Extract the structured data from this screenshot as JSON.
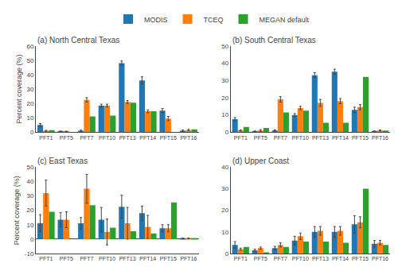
{
  "chart_data": [
    {
      "type": "bar",
      "title": "(a) North Central Texas",
      "categories": [
        "PFT1",
        "PFT5",
        "PFT7",
        "PFT10",
        "PFT13",
        "PFT14",
        "PFT15",
        "PFT16"
      ],
      "series": [
        {
          "name": "MODIS",
          "values": [
            5.0,
            0.5,
            1.0,
            18.5,
            48.0,
            36.0,
            15.0,
            1.0
          ],
          "error_plus": [
            1.0,
            0.3,
            0.5,
            1.0,
            1.5,
            2.5,
            1.5,
            0.5
          ],
          "error_minus": [
            1.0,
            0.3,
            0.5,
            1.0,
            1.5,
            2.5,
            1.5,
            0.5
          ]
        },
        {
          "name": "TCEQ",
          "values": [
            1.0,
            0.5,
            22.5,
            18.5,
            21.0,
            14.5,
            9.5,
            1.5
          ],
          "error_plus": [
            0.3,
            0.2,
            1.5,
            1.0,
            1.0,
            1.0,
            1.5,
            0.5
          ],
          "error_minus": [
            0.3,
            0.2,
            1.5,
            1.0,
            1.0,
            1.0,
            1.5,
            0.5
          ]
        },
        {
          "name": "MEGAN default",
          "values": [
            1.5,
            0.0,
            11.0,
            11.5,
            20.5,
            14.5,
            0.0,
            2.0
          ]
        }
      ],
      "ylabel": "Percent coverage (%)",
      "ylim": [
        0,
        60
      ],
      "yticks": [
        0,
        10,
        20,
        30,
        40,
        50,
        60
      ],
      "grid": false,
      "legend": "top"
    },
    {
      "type": "bar",
      "title": "(b) South Central Texas",
      "categories": [
        "PFT1",
        "PFT5",
        "PFT7",
        "PFT10",
        "PFT13",
        "PFT14",
        "PFT15",
        "PFT16"
      ],
      "series": [
        {
          "name": "MODIS",
          "values": [
            7.5,
            0.5,
            1.0,
            10.0,
            33.0,
            35.0,
            13.0,
            0.5
          ],
          "error_plus": [
            1.0,
            0.2,
            0.3,
            0.8,
            1.5,
            1.5,
            1.5,
            0.2
          ],
          "error_minus": [
            1.0,
            0.2,
            0.3,
            0.8,
            1.5,
            1.5,
            1.5,
            0.2
          ]
        },
        {
          "name": "TCEQ",
          "values": [
            1.0,
            1.0,
            19.0,
            14.0,
            17.0,
            18.0,
            14.5,
            1.0
          ],
          "error_plus": [
            0.3,
            0.5,
            1.5,
            1.0,
            2.0,
            1.5,
            1.5,
            0.3
          ],
          "error_minus": [
            0.3,
            0.5,
            1.5,
            1.0,
            2.0,
            1.5,
            1.5,
            0.3
          ]
        },
        {
          "name": "MEGAN default",
          "values": [
            3.0,
            2.5,
            11.5,
            12.5,
            5.5,
            5.5,
            32.0,
            1.0
          ]
        }
      ],
      "ylim": [
        0,
        50
      ],
      "yticks": [
        0,
        10,
        20,
        30,
        40,
        50
      ],
      "grid": false
    },
    {
      "type": "bar",
      "title": "(c) East Texas",
      "categories": [
        "PFT1",
        "PFT5",
        "PFT7",
        "PFT10",
        "PFT13",
        "PFT14",
        "PFT15",
        "PFT16"
      ],
      "series": [
        {
          "name": "MODIS",
          "values": [
            11.0,
            13.5,
            11.0,
            13.5,
            22.5,
            18.0,
            7.5,
            0.5
          ],
          "error_plus": [
            6.0,
            5.0,
            4.0,
            8.5,
            8.0,
            5.0,
            2.5,
            0.2
          ],
          "error_minus": [
            6.0,
            5.0,
            4.0,
            8.5,
            8.0,
            5.0,
            2.5,
            0.2
          ]
        },
        {
          "name": "TCEQ",
          "values": [
            32.0,
            13.5,
            35.0,
            5.0,
            11.0,
            8.5,
            7.5,
            0.5
          ],
          "error_plus": [
            9.0,
            5.5,
            10.0,
            9.0,
            11.0,
            8.0,
            2.5,
            0.2
          ],
          "error_minus": [
            9.0,
            5.5,
            10.0,
            9.0,
            11.0,
            8.0,
            2.5,
            0.2
          ]
        },
        {
          "name": "MEGAN default",
          "values": [
            19.0,
            0.0,
            23.5,
            8.0,
            5.5,
            4.0,
            25.5,
            0.5
          ]
        }
      ],
      "ylabel": "Percent coverage (%)",
      "ylim": [
        -10,
        50
      ],
      "yticks": [
        -10,
        0,
        10,
        20,
        30,
        40,
        50
      ],
      "grid": false
    },
    {
      "type": "bar",
      "title": "(d) Upper Coast",
      "categories": [
        "PFT1",
        "PFT5",
        "PFT7",
        "PFT10",
        "PFT13",
        "PFT14",
        "PFT15",
        "PFT16"
      ],
      "series": [
        {
          "name": "MODIS",
          "values": [
            4.0,
            1.5,
            2.5,
            6.0,
            10.0,
            10.0,
            13.5,
            4.5
          ],
          "error_plus": [
            1.5,
            0.5,
            0.8,
            2.0,
            2.5,
            2.5,
            4.0,
            1.5
          ],
          "error_minus": [
            1.5,
            0.5,
            0.8,
            2.0,
            2.5,
            2.5,
            4.0,
            1.5
          ]
        },
        {
          "name": "TCEQ",
          "values": [
            2.0,
            2.5,
            4.0,
            8.0,
            10.5,
            10.5,
            14.5,
            5.0
          ],
          "error_plus": [
            0.5,
            0.5,
            1.0,
            1.5,
            2.0,
            2.0,
            2.5,
            1.0
          ],
          "error_minus": [
            0.5,
            0.5,
            1.0,
            1.5,
            2.0,
            2.0,
            2.5,
            1.0
          ]
        },
        {
          "name": "MEGAN default",
          "values": [
            3.0,
            0.5,
            3.0,
            5.5,
            5.5,
            5.0,
            30.0,
            4.0
          ]
        }
      ],
      "ylim": [
        0,
        40
      ],
      "yticks": [
        0,
        10,
        20,
        30,
        40
      ],
      "grid": false
    }
  ]
}
